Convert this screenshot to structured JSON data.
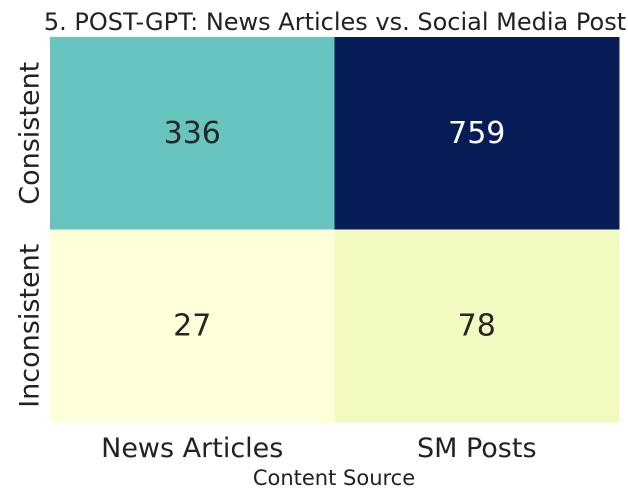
{
  "chart_data": {
    "type": "heatmap",
    "title": "5. POST-GPT: News Articles vs. Social Media Post",
    "xlabel": "Content Source",
    "ylabel": "",
    "x_categories": [
      "News Articles",
      "SM Posts"
    ],
    "y_categories": [
      "Consistent",
      "Inconsistent"
    ],
    "values": [
      [
        336,
        759
      ],
      [
        27,
        78
      ]
    ],
    "colormap": "YlGnBu",
    "colorbar": false,
    "annotated": true,
    "cell_colors": [
      [
        "#68c4be",
        "#081d58"
      ],
      [
        "#ffffd9",
        "#f3fac1"
      ]
    ],
    "annotation_colors": [
      [
        "#262626",
        "#ffffff"
      ],
      [
        "#262626",
        "#262626"
      ]
    ]
  }
}
